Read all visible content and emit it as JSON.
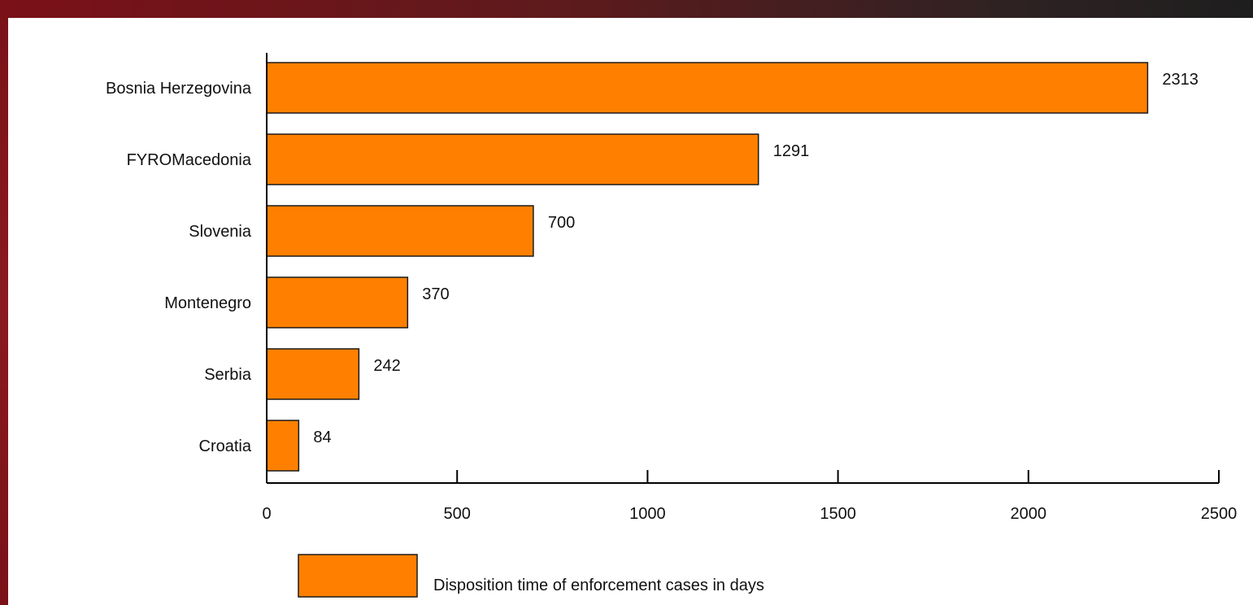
{
  "colors": {
    "bar": "#ff8000",
    "frame_dark": "#7a1118",
    "axis": "#000000"
  },
  "chart_data": {
    "type": "bar",
    "orientation": "horizontal",
    "categories": [
      "Bosnia Herzegovina",
      "FYROMacedonia",
      "Slovenia",
      "Montenegro",
      "Serbia",
      "Croatia"
    ],
    "series": [
      {
        "name": "Disposition time of enforcement cases in days",
        "values": [
          2313,
          1291,
          700,
          370,
          242,
          84
        ]
      }
    ],
    "data_labels": [
      "2313",
      "1291",
      "700",
      "370",
      "242",
      "84"
    ],
    "x_ticks": [
      0,
      500,
      1000,
      1500,
      2000,
      2500
    ],
    "x_tick_labels": [
      "0",
      "500",
      "1000",
      "1500",
      "2000",
      "2500"
    ],
    "xlim": [
      0,
      2500
    ],
    "title": "",
    "xlabel": "",
    "ylabel": "",
    "grid": false,
    "legend_position": "bottom"
  }
}
